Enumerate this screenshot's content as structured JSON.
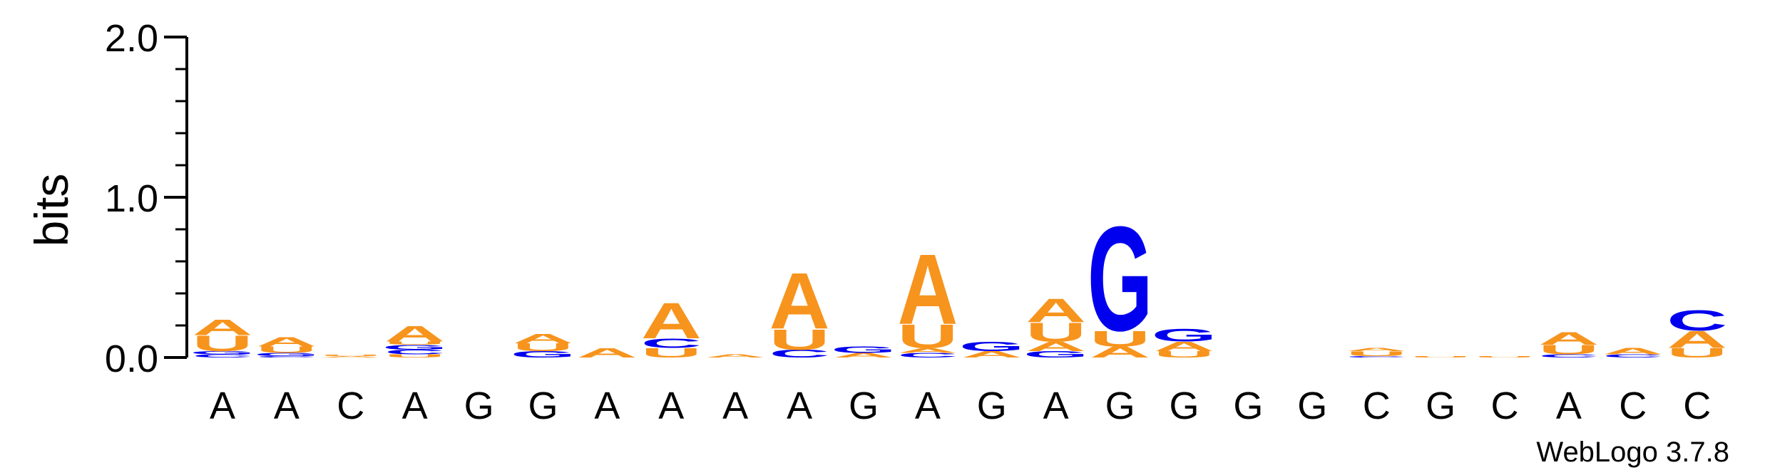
{
  "chart_data": {
    "type": "sequence-logo",
    "ylabel": "bits",
    "ylim": [
      0,
      2.0
    ],
    "yticks": [
      "0.0",
      "1.0",
      "2.0"
    ],
    "x_labels": [
      "A",
      "A",
      "C",
      "A",
      "G",
      "G",
      "A",
      "A",
      "A",
      "A",
      "G",
      "A",
      "G",
      "A",
      "G",
      "G",
      "G",
      "G",
      "C",
      "G",
      "C",
      "A",
      "C",
      "C"
    ],
    "credit": "WebLogo 3.7.8",
    "colors": {
      "A": "#f7941d",
      "U": "#f7941d",
      "G": "#0000ee",
      "C": "#0000ee"
    },
    "stacks": [
      [
        [
          "C",
          0.02
        ],
        [
          "G",
          0.02
        ],
        [
          "U",
          0.1
        ],
        [
          "A",
          0.1
        ]
      ],
      [
        [
          "C",
          0.01
        ],
        [
          "G",
          0.02
        ],
        [
          "U",
          0.04
        ],
        [
          "A",
          0.06
        ]
      ],
      [
        [
          "A",
          0.01
        ],
        [
          "U",
          0.01
        ]
      ],
      [
        [
          "U",
          0.02
        ],
        [
          "C",
          0.03
        ],
        [
          "G",
          0.03
        ],
        [
          "U",
          0.02
        ],
        [
          "A",
          0.1
        ]
      ],
      [],
      [
        [
          "G",
          0.04
        ],
        [
          "U",
          0.05
        ],
        [
          "A",
          0.06
        ]
      ],
      [
        [
          "A",
          0.06
        ]
      ],
      [
        [
          "U",
          0.06
        ],
        [
          "C",
          0.06
        ],
        [
          "A",
          0.23
        ]
      ],
      [
        [
          "A",
          0.02
        ]
      ],
      [
        [
          "C",
          0.05
        ],
        [
          "U",
          0.13
        ],
        [
          "A",
          0.36
        ]
      ],
      [
        [
          "A",
          0.03
        ],
        [
          "G",
          0.04
        ]
      ],
      [
        [
          "C",
          0.03
        ],
        [
          "A",
          0.03
        ],
        [
          "U",
          0.15
        ],
        [
          "A",
          0.45
        ]
      ],
      [
        [
          "A",
          0.04
        ],
        [
          "G",
          0.06
        ]
      ],
      [
        [
          "G",
          0.04
        ],
        [
          "A",
          0.06
        ],
        [
          "U",
          0.12
        ],
        [
          "A",
          0.15
        ]
      ],
      [
        [
          "A",
          0.07
        ],
        [
          "U",
          0.1
        ],
        [
          "G",
          0.67
        ]
      ],
      [
        [
          "U",
          0.04
        ],
        [
          "A",
          0.06
        ],
        [
          "G",
          0.08
        ]
      ],
      [],
      [],
      [
        [
          "C",
          0.01
        ],
        [
          "U",
          0.03
        ],
        [
          "A",
          0.02
        ]
      ],
      [
        [
          "U",
          0.01
        ]
      ],
      [
        [
          "U",
          0.01
        ]
      ],
      [
        [
          "C",
          0.02
        ],
        [
          "U",
          0.06
        ],
        [
          "A",
          0.08
        ]
      ],
      [
        [
          "C",
          0.02
        ],
        [
          "A",
          0.04
        ]
      ],
      [
        [
          "U",
          0.06
        ],
        [
          "A",
          0.11
        ],
        [
          "C",
          0.13
        ]
      ]
    ]
  }
}
